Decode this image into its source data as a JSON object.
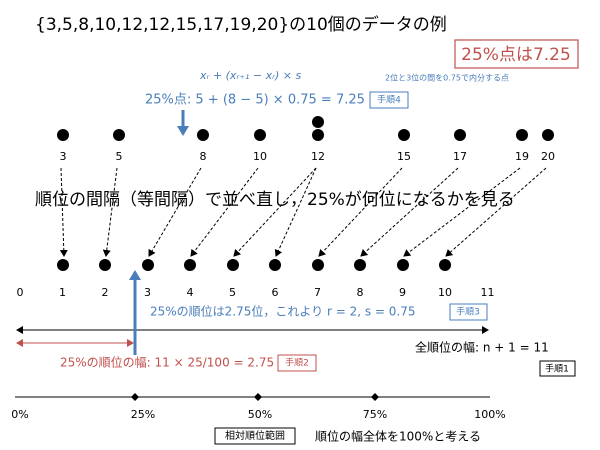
{
  "title": "{3,5,8,10,12,12,15,17,19,20}の10個のデータの例",
  "result_box": "25%点は7.25",
  "formula": "xᵣ + (xᵣ₊₁ − xᵣ) × s",
  "formula_note": "2位と3位の間を0.75で内分する点",
  "step4_text": "25%点: 5 + (8 − 5) × 0.75 = 7.25",
  "step4_label": "手順4",
  "value_labels": [
    "3",
    "5",
    "8",
    "10",
    "12",
    "15",
    "17",
    "19",
    "20"
  ],
  "middle_text": "順位の間隔（等間隔）で並べ直し，25%が何位になるかを見る",
  "rank_labels": [
    "0",
    "1",
    "2",
    "3",
    "4",
    "5",
    "6",
    "7",
    "8",
    "9",
    "10",
    "11"
  ],
  "step3_text": "25%の順位は2.75位，これより r = 2, s = 0.75",
  "step3_label": "手順3",
  "total_width": "全順位の幅: n + 1 = 11",
  "step1_label": "手順1",
  "step2_text": "25%の順位の幅: 11 × 25/100 = 2.75",
  "step2_label": "手順2",
  "percent_labels": [
    "0%",
    "25%",
    "50%",
    "75%",
    "100%"
  ],
  "range_label": "相対順位範囲",
  "range_note": "順位の幅全体を100%と考える"
}
